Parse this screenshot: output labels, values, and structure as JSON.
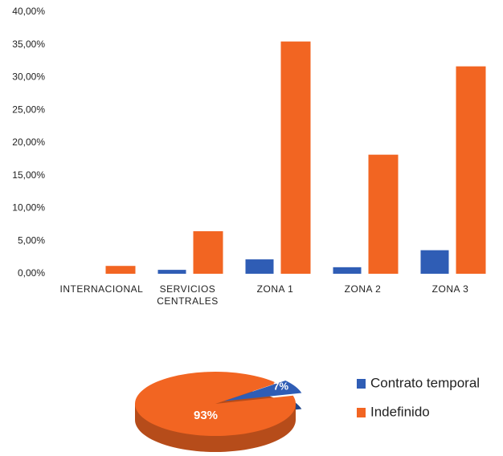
{
  "chart_data": [
    {
      "type": "bar",
      "categories": [
        "INTERNACIONAL",
        "SERVICIOS CENTRALES",
        "ZONA 1",
        "ZONA 2",
        "ZONA 3"
      ],
      "series": [
        {
          "color": "#2f5db5",
          "values": [
            0,
            0.6,
            2.2,
            1.0,
            3.6
          ]
        },
        {
          "color": "#f26522",
          "values": [
            1.2,
            6.5,
            35.5,
            18.2,
            31.7
          ]
        }
      ],
      "ylim": [
        0,
        40
      ],
      "yticks": [
        {
          "value": 0,
          "label": "0,00%"
        },
        {
          "value": 5,
          "label": "5,00%"
        },
        {
          "value": 10,
          "label": "10,00%"
        },
        {
          "value": 15,
          "label": "15,00%"
        },
        {
          "value": 20,
          "label": "20,00%"
        },
        {
          "value": 25,
          "label": "25,00%"
        },
        {
          "value": 30,
          "label": "30,00%"
        },
        {
          "value": 35,
          "label": "35,00%"
        },
        {
          "value": 40,
          "label": "40,00%"
        }
      ],
      "grid": false
    },
    {
      "type": "pie",
      "categories": [
        "Contrato temporal",
        "Indefinido"
      ],
      "values": [
        7,
        93
      ],
      "value_labels": [
        "7%",
        "93%"
      ],
      "colors": [
        "#2f5db5",
        "#f26522"
      ],
      "legend": "right"
    }
  ]
}
